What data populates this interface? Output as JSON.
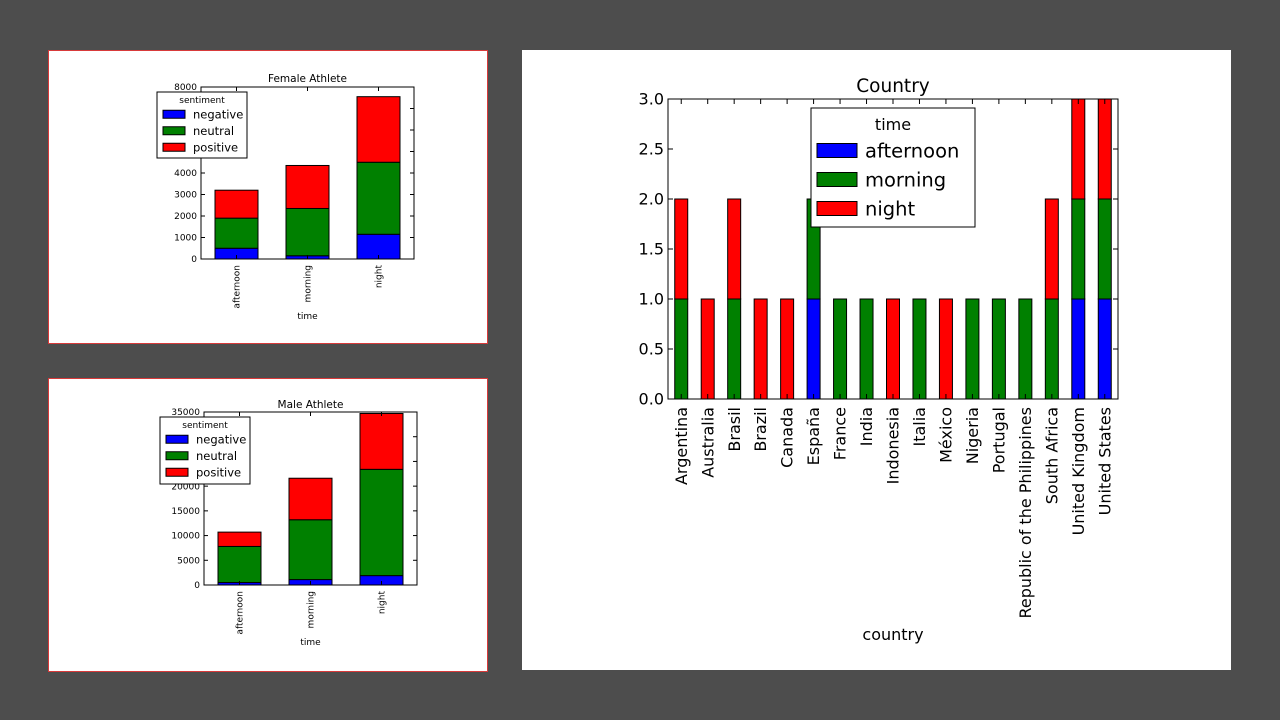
{
  "colors": {
    "blue": "#0000ff",
    "green": "#008000",
    "red": "#ff0000",
    "background": "#4d4d4d",
    "panel_border": "#d83a3a"
  },
  "chart_data": [
    {
      "type": "bar",
      "stacked": true,
      "title": "Female Athlete",
      "xlabel": "time",
      "ylabel": "",
      "categories": [
        "afternoon",
        "morning",
        "night"
      ],
      "ylim": [
        0,
        8000
      ],
      "yticks": [
        "0",
        "1000",
        "2000",
        "3000",
        "4000",
        "5000",
        "6000",
        "7000",
        "8000"
      ],
      "legend_title": "sentiment",
      "legend_position": "top-left",
      "series": [
        {
          "name": "negative",
          "color": "#0000ff",
          "values": [
            500,
            150,
            1150
          ]
        },
        {
          "name": "neutral",
          "color": "#008000",
          "values": [
            1400,
            2200,
            3350
          ]
        },
        {
          "name": "positive",
          "color": "#ff0000",
          "values": [
            1300,
            2000,
            3050
          ]
        }
      ]
    },
    {
      "type": "bar",
      "stacked": true,
      "title": "Male Athlete",
      "xlabel": "time",
      "ylabel": "",
      "categories": [
        "afternoon",
        "morning",
        "night"
      ],
      "ylim": [
        0,
        35000
      ],
      "yticks": [
        "0",
        "5000",
        "10000",
        "15000",
        "20000",
        "25000",
        "30000",
        "35000"
      ],
      "legend_title": "sentiment",
      "legend_position": "top-left",
      "series": [
        {
          "name": "negative",
          "color": "#0000ff",
          "values": [
            500,
            1100,
            1900
          ]
        },
        {
          "name": "neutral",
          "color": "#008000",
          "values": [
            7300,
            12100,
            21500
          ]
        },
        {
          "name": "positive",
          "color": "#ff0000",
          "values": [
            2900,
            8400,
            11300
          ]
        }
      ]
    },
    {
      "type": "bar",
      "stacked": true,
      "title": "Country",
      "xlabel": "country",
      "ylabel": "",
      "categories": [
        "Argentina",
        "Australia",
        "Brasil",
        "Brazil",
        "Canada",
        "España",
        "France",
        "India",
        "Indonesia",
        "Italia",
        "México",
        "Nigeria",
        "Portugal",
        "Republic of the Philippines",
        "South Africa",
        "United Kingdom",
        "United States"
      ],
      "ylim": [
        0,
        3
      ],
      "yticks": [
        "0.0",
        "0.5",
        "1.0",
        "1.5",
        "2.0",
        "2.5",
        "3.0"
      ],
      "legend_title": "time",
      "legend_position": "top-center",
      "series": [
        {
          "name": "afternoon",
          "color": "#0000ff",
          "values": [
            0,
            0,
            0,
            0,
            0,
            1,
            0,
            0,
            0,
            0,
            0,
            0,
            0,
            0,
            0,
            1,
            1
          ]
        },
        {
          "name": "morning",
          "color": "#008000",
          "values": [
            1,
            0,
            1,
            0,
            0,
            1,
            1,
            1,
            0,
            1,
            0,
            1,
            1,
            1,
            1,
            1,
            1
          ]
        },
        {
          "name": "night",
          "color": "#ff0000",
          "values": [
            1,
            1,
            1,
            1,
            1,
            0,
            0,
            0,
            1,
            0,
            1,
            0,
            0,
            0,
            1,
            1,
            1
          ]
        }
      ]
    }
  ]
}
